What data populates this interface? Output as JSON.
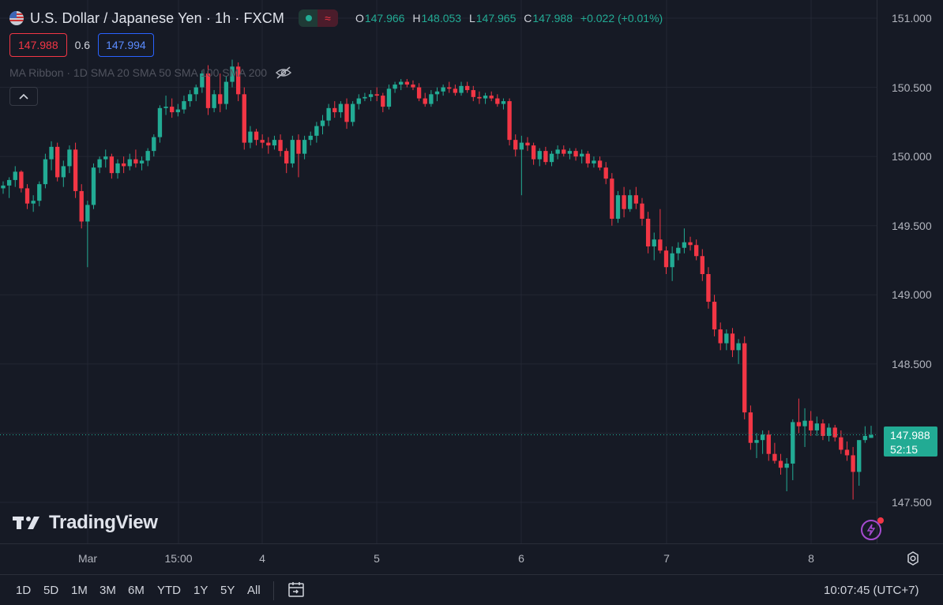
{
  "header": {
    "title": "U.S. Dollar / Japanese Yen · 1h · FXCM",
    "ohlc": {
      "o_label": "O",
      "o": "147.966",
      "h_label": "H",
      "h": "148.053",
      "l_label": "L",
      "l": "147.965",
      "c_label": "C",
      "c": "147.988",
      "change": "+0.022 (+0.01%)"
    },
    "status_wave": "≈"
  },
  "quote": {
    "bid": "147.988",
    "spread": "0.6",
    "ask": "147.994"
  },
  "indicator": {
    "label": "MA Ribbon · 1D SMA 20 SMA 50 SMA 100 SMA 200"
  },
  "last_price": {
    "price": "147.988",
    "countdown": "52:15",
    "color": "#22ab94"
  },
  "logo": {
    "text": "TradingView"
  },
  "bottom_bar": {
    "ranges": [
      "1D",
      "5D",
      "1M",
      "3M",
      "6M",
      "YTD",
      "1Y",
      "5Y",
      "All"
    ],
    "clock": "10:07:45 (UTC+7)"
  },
  "chart_data": {
    "type": "candlestick",
    "up_color": "#22ab94",
    "down_color": "#f23645",
    "y_axis": {
      "ticks": [
        "151.000",
        "150.500",
        "150.000",
        "149.500",
        "149.000",
        "148.500",
        "147.500"
      ],
      "range": [
        147.35,
        151.12
      ]
    },
    "x_axis": {
      "ticks": [
        "Mar",
        "15:00",
        "4",
        "5",
        "6",
        "7",
        "8"
      ]
    },
    "last_value": 147.988,
    "ohlc": [
      [
        149.77,
        149.82,
        149.73,
        149.79
      ],
      [
        149.79,
        149.85,
        149.7,
        149.83
      ],
      [
        149.83,
        149.93,
        149.78,
        149.89
      ],
      [
        149.89,
        149.9,
        149.74,
        149.77
      ],
      [
        149.77,
        149.8,
        149.62,
        149.66
      ],
      [
        149.66,
        149.72,
        149.6,
        149.68
      ],
      [
        149.68,
        149.82,
        149.64,
        149.8
      ],
      [
        149.8,
        150.02,
        149.77,
        149.98
      ],
      [
        149.98,
        150.11,
        149.9,
        150.07
      ],
      [
        150.07,
        150.1,
        149.82,
        149.85
      ],
      [
        149.85,
        149.97,
        149.78,
        149.93
      ],
      [
        149.93,
        150.08,
        149.88,
        150.05
      ],
      [
        150.05,
        150.1,
        149.7,
        149.75
      ],
      [
        149.75,
        149.8,
        149.48,
        149.53
      ],
      [
        149.53,
        149.68,
        149.2,
        149.65
      ],
      [
        149.65,
        149.95,
        149.62,
        149.92
      ],
      [
        149.92,
        150.0,
        149.88,
        149.98
      ],
      [
        149.98,
        150.05,
        149.92,
        150.0
      ],
      [
        150.0,
        150.02,
        149.84,
        149.88
      ],
      [
        149.88,
        149.98,
        149.84,
        149.95
      ],
      [
        149.95,
        150.0,
        149.88,
        149.93
      ],
      [
        149.93,
        150.02,
        149.9,
        149.98
      ],
      [
        149.98,
        150.05,
        149.92,
        149.95
      ],
      [
        149.95,
        150.0,
        149.9,
        149.97
      ],
      [
        149.97,
        150.06,
        149.93,
        150.04
      ],
      [
        150.04,
        150.16,
        150.0,
        150.14
      ],
      [
        150.14,
        150.37,
        150.1,
        150.35
      ],
      [
        150.35,
        150.44,
        150.3,
        150.36
      ],
      [
        150.36,
        150.42,
        150.28,
        150.32
      ],
      [
        150.32,
        150.38,
        150.29,
        150.34
      ],
      [
        150.34,
        150.44,
        150.31,
        150.4
      ],
      [
        150.4,
        150.48,
        150.36,
        150.45
      ],
      [
        150.45,
        150.52,
        150.4,
        150.5
      ],
      [
        150.5,
        150.62,
        150.46,
        150.6
      ],
      [
        150.6,
        150.66,
        150.3,
        150.35
      ],
      [
        150.35,
        150.48,
        150.32,
        150.45
      ],
      [
        150.45,
        150.6,
        150.32,
        150.38
      ],
      [
        150.38,
        150.58,
        150.34,
        150.54
      ],
      [
        150.54,
        150.7,
        150.5,
        150.65
      ],
      [
        150.65,
        150.68,
        150.4,
        150.45
      ],
      [
        150.45,
        150.5,
        150.05,
        150.1
      ],
      [
        150.1,
        150.22,
        150.06,
        150.18
      ],
      [
        150.18,
        150.2,
        150.08,
        150.12
      ],
      [
        150.12,
        150.16,
        150.06,
        150.1
      ],
      [
        150.1,
        150.14,
        150.02,
        150.08
      ],
      [
        150.08,
        150.15,
        150.05,
        150.12
      ],
      [
        150.12,
        150.16,
        150.0,
        150.04
      ],
      [
        150.04,
        150.06,
        149.88,
        149.95
      ],
      [
        149.95,
        150.15,
        149.92,
        150.12
      ],
      [
        150.12,
        150.16,
        149.85,
        150.02
      ],
      [
        150.02,
        150.15,
        149.98,
        150.12
      ],
      [
        150.12,
        150.18,
        150.08,
        150.15
      ],
      [
        150.15,
        150.25,
        150.1,
        150.22
      ],
      [
        150.22,
        150.3,
        150.16,
        150.26
      ],
      [
        150.26,
        150.38,
        150.22,
        150.35
      ],
      [
        150.35,
        150.4,
        150.28,
        150.32
      ],
      [
        150.32,
        150.4,
        150.28,
        150.38
      ],
      [
        150.38,
        150.42,
        150.2,
        150.25
      ],
      [
        150.25,
        150.4,
        150.22,
        150.38
      ],
      [
        150.38,
        150.45,
        150.34,
        150.42
      ],
      [
        150.42,
        150.46,
        150.4,
        150.43
      ],
      [
        150.43,
        150.48,
        150.4,
        150.45
      ],
      [
        150.45,
        150.5,
        150.4,
        150.44
      ],
      [
        150.44,
        150.46,
        150.32,
        150.36
      ],
      [
        150.36,
        150.52,
        150.34,
        150.49
      ],
      [
        150.49,
        150.54,
        150.46,
        150.52
      ],
      [
        150.52,
        150.56,
        150.48,
        150.54
      ],
      [
        150.54,
        150.56,
        150.5,
        150.52
      ],
      [
        150.52,
        150.55,
        150.48,
        150.5
      ],
      [
        150.5,
        150.53,
        150.4,
        150.42
      ],
      [
        150.42,
        150.46,
        150.36,
        150.38
      ],
      [
        150.38,
        150.48,
        150.36,
        150.45
      ],
      [
        150.45,
        150.5,
        150.4,
        150.47
      ],
      [
        150.47,
        150.52,
        150.44,
        150.5
      ],
      [
        150.5,
        150.54,
        150.46,
        150.49
      ],
      [
        150.49,
        150.52,
        150.44,
        150.46
      ],
      [
        150.46,
        150.54,
        150.44,
        150.51
      ],
      [
        150.51,
        150.54,
        150.46,
        150.48
      ],
      [
        150.48,
        150.51,
        150.4,
        150.43
      ],
      [
        150.43,
        150.47,
        150.38,
        150.42
      ],
      [
        150.42,
        150.46,
        150.38,
        150.44
      ],
      [
        150.44,
        150.47,
        150.4,
        150.42
      ],
      [
        150.42,
        150.45,
        150.36,
        150.38
      ],
      [
        150.38,
        150.42,
        150.34,
        150.4
      ],
      [
        150.4,
        150.42,
        150.08,
        150.12
      ],
      [
        150.12,
        150.16,
        150.0,
        150.05
      ],
      [
        150.05,
        150.15,
        149.72,
        150.1
      ],
      [
        150.1,
        150.14,
        150.04,
        150.08
      ],
      [
        150.08,
        150.1,
        149.94,
        149.98
      ],
      [
        149.98,
        150.06,
        149.93,
        150.04
      ],
      [
        150.04,
        150.07,
        149.94,
        149.96
      ],
      [
        149.96,
        150.04,
        149.93,
        150.02
      ],
      [
        150.02,
        150.08,
        149.98,
        150.05
      ],
      [
        150.05,
        150.08,
        150.0,
        150.02
      ],
      [
        150.02,
        150.06,
        149.98,
        150.04
      ],
      [
        150.04,
        150.06,
        149.97,
        150.0
      ],
      [
        150.0,
        150.05,
        149.95,
        150.02
      ],
      [
        150.02,
        150.04,
        149.92,
        149.95
      ],
      [
        149.95,
        150.0,
        149.92,
        149.97
      ],
      [
        149.97,
        150.0,
        149.9,
        149.92
      ],
      [
        149.92,
        149.96,
        149.8,
        149.84
      ],
      [
        149.84,
        149.88,
        149.5,
        149.55
      ],
      [
        149.55,
        149.75,
        149.52,
        149.72
      ],
      [
        149.72,
        149.78,
        149.56,
        149.62
      ],
      [
        149.62,
        149.76,
        149.6,
        149.72
      ],
      [
        149.72,
        149.78,
        149.62,
        149.66
      ],
      [
        149.66,
        149.7,
        149.5,
        149.55
      ],
      [
        149.55,
        149.6,
        149.3,
        149.35
      ],
      [
        149.35,
        149.45,
        149.25,
        149.4
      ],
      [
        149.4,
        149.62,
        149.3,
        149.32
      ],
      [
        149.32,
        149.35,
        149.15,
        149.2
      ],
      [
        149.2,
        149.35,
        149.1,
        149.3
      ],
      [
        149.3,
        149.38,
        149.25,
        149.34
      ],
      [
        149.34,
        149.48,
        149.3,
        149.38
      ],
      [
        149.38,
        149.42,
        149.32,
        149.36
      ],
      [
        149.36,
        149.4,
        149.25,
        149.28
      ],
      [
        149.28,
        149.33,
        149.1,
        149.15
      ],
      [
        149.15,
        149.2,
        148.9,
        148.95
      ],
      [
        148.95,
        149.0,
        148.7,
        148.75
      ],
      [
        148.75,
        148.8,
        148.6,
        148.65
      ],
      [
        148.65,
        148.75,
        148.6,
        148.72
      ],
      [
        148.72,
        148.76,
        148.55,
        148.6
      ],
      [
        148.6,
        148.68,
        148.5,
        148.65
      ],
      [
        148.65,
        148.7,
        148.1,
        148.15
      ],
      [
        148.15,
        148.2,
        147.88,
        147.93
      ],
      [
        147.93,
        148.0,
        147.82,
        147.95
      ],
      [
        147.95,
        148.02,
        147.85,
        147.99
      ],
      [
        147.99,
        148.02,
        147.8,
        147.85
      ],
      [
        147.85,
        147.93,
        147.78,
        147.8
      ],
      [
        147.8,
        147.85,
        147.7,
        147.75
      ],
      [
        147.75,
        147.82,
        147.58,
        147.78
      ],
      [
        147.78,
        148.1,
        147.66,
        148.08
      ],
      [
        148.08,
        148.25,
        148.0,
        148.05
      ],
      [
        148.05,
        148.18,
        147.9,
        148.09
      ],
      [
        148.09,
        148.16,
        147.98,
        148.02
      ],
      [
        148.02,
        148.12,
        147.98,
        148.07
      ],
      [
        148.07,
        148.1,
        147.95,
        147.98
      ],
      [
        147.98,
        148.07,
        147.94,
        148.04
      ],
      [
        148.04,
        148.06,
        147.94,
        147.97
      ],
      [
        147.97,
        148.02,
        147.85,
        147.88
      ],
      [
        147.88,
        147.94,
        147.8,
        147.84
      ],
      [
        147.84,
        147.9,
        147.52,
        147.72
      ],
      [
        147.72,
        147.92,
        147.62,
        147.95
      ],
      [
        147.95,
        148.05,
        147.93,
        147.98
      ],
      [
        147.966,
        148.053,
        147.965,
        147.988
      ]
    ]
  }
}
